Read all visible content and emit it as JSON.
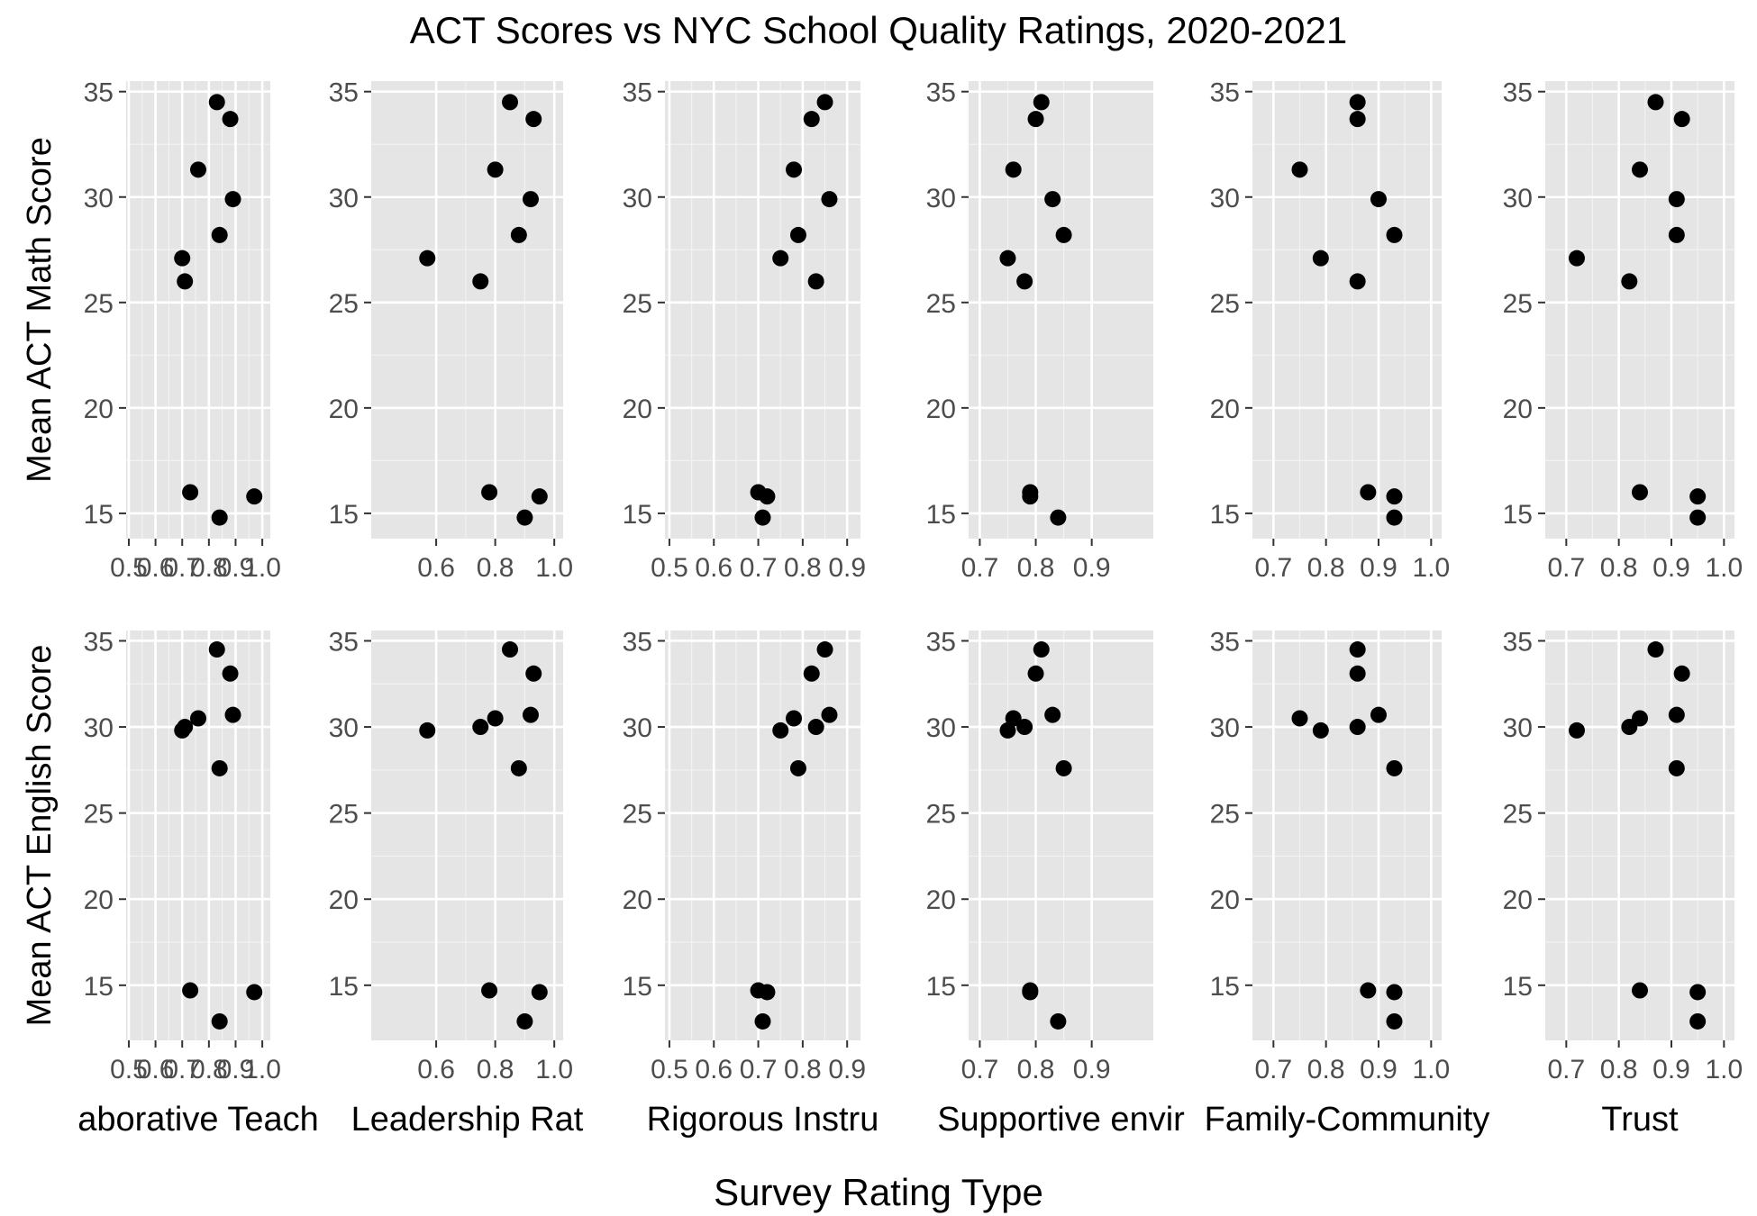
{
  "chart_data": {
    "type": "scatter",
    "title": "ACT Scores vs NYC School Quality Ratings, 2020-2021",
    "xlabel": "Survey Rating Type",
    "point_color": "#000000",
    "panel_background": "#e5e5e5",
    "grid": true,
    "rows": [
      {
        "ylabel": "Mean ACT Math Score",
        "ylim": [
          13.8,
          35.5
        ],
        "yticks": [
          15,
          20,
          25,
          30,
          35
        ]
      },
      {
        "ylabel": "Mean ACT English Score",
        "ylim": [
          11.8,
          35.6
        ],
        "yticks": [
          15,
          20,
          25,
          30,
          35
        ]
      }
    ],
    "columns": [
      {
        "strip_label": "aborative Teach",
        "xlim": [
          0.49,
          1.03
        ],
        "xticks": [
          0.5,
          0.6,
          0.7,
          0.8,
          0.9,
          1.0
        ],
        "xtick_labels": [
          "0.5",
          "0.6",
          "0.7",
          "0.8",
          "0.9",
          "1.0"
        ]
      },
      {
        "strip_label": "Leadership Rat",
        "xlim": [
          0.38,
          1.03
        ],
        "xticks": [
          0.6,
          0.8,
          1.0
        ],
        "xtick_labels": [
          "0.6",
          "0.8",
          "1.0"
        ]
      },
      {
        "strip_label": "Rigorous Instru",
        "xlim": [
          0.49,
          0.93
        ],
        "xticks": [
          0.5,
          0.6,
          0.7,
          0.8,
          0.9
        ],
        "xtick_labels": [
          "0.5",
          "0.6",
          "0.7",
          "0.8",
          "0.9"
        ]
      },
      {
        "strip_label": "Supportive envir",
        "xlim": [
          0.68,
          1.01
        ],
        "xticks": [
          0.7,
          0.8,
          0.9
        ],
        "xtick_labels": [
          "0.7",
          "0.8",
          "0.9"
        ]
      },
      {
        "strip_label": "Family-Community",
        "xlim": [
          0.66,
          1.02
        ],
        "xticks": [
          0.7,
          0.8,
          0.9,
          1.0
        ],
        "xtick_labels": [
          "0.7",
          "0.8",
          "0.9",
          "1.0"
        ]
      },
      {
        "strip_label": "Trust",
        "xlim": [
          0.66,
          1.02
        ],
        "xticks": [
          0.7,
          0.8,
          0.9,
          1.0
        ],
        "xtick_labels": [
          "0.7",
          "0.8",
          "0.9",
          "1.0"
        ]
      }
    ],
    "panels": [
      {
        "row": 0,
        "col": 0,
        "points": [
          [
            0.83,
            34.5
          ],
          [
            0.88,
            33.7
          ],
          [
            0.76,
            31.3
          ],
          [
            0.89,
            29.9
          ],
          [
            0.84,
            28.2
          ],
          [
            0.7,
            27.1
          ],
          [
            0.71,
            26.0
          ],
          [
            0.73,
            16.0
          ],
          [
            0.97,
            15.8
          ],
          [
            0.84,
            14.8
          ]
        ]
      },
      {
        "row": 0,
        "col": 1,
        "points": [
          [
            0.85,
            34.5
          ],
          [
            0.93,
            33.7
          ],
          [
            0.8,
            31.3
          ],
          [
            0.92,
            29.9
          ],
          [
            0.88,
            28.2
          ],
          [
            0.57,
            27.1
          ],
          [
            0.75,
            26.0
          ],
          [
            0.78,
            16.0
          ],
          [
            0.95,
            15.8
          ],
          [
            0.9,
            14.8
          ]
        ]
      },
      {
        "row": 0,
        "col": 2,
        "points": [
          [
            0.85,
            34.5
          ],
          [
            0.82,
            33.7
          ],
          [
            0.78,
            31.3
          ],
          [
            0.86,
            29.9
          ],
          [
            0.79,
            28.2
          ],
          [
            0.75,
            27.1
          ],
          [
            0.83,
            26.0
          ],
          [
            0.7,
            16.0
          ],
          [
            0.72,
            15.8
          ],
          [
            0.71,
            14.8
          ]
        ]
      },
      {
        "row": 0,
        "col": 3,
        "points": [
          [
            0.81,
            34.5
          ],
          [
            0.8,
            33.7
          ],
          [
            0.76,
            31.3
          ],
          [
            0.83,
            29.9
          ],
          [
            0.85,
            28.2
          ],
          [
            0.75,
            27.1
          ],
          [
            0.78,
            26.0
          ],
          [
            0.79,
            16.0
          ],
          [
            0.79,
            15.8
          ],
          [
            0.84,
            14.8
          ]
        ]
      },
      {
        "row": 0,
        "col": 4,
        "points": [
          [
            0.86,
            34.5
          ],
          [
            0.86,
            33.7
          ],
          [
            0.75,
            31.3
          ],
          [
            0.9,
            29.9
          ],
          [
            0.93,
            28.2
          ],
          [
            0.79,
            27.1
          ],
          [
            0.86,
            26.0
          ],
          [
            0.88,
            16.0
          ],
          [
            0.93,
            15.8
          ],
          [
            0.93,
            14.8
          ]
        ]
      },
      {
        "row": 0,
        "col": 5,
        "points": [
          [
            0.87,
            34.5
          ],
          [
            0.92,
            33.7
          ],
          [
            0.84,
            31.3
          ],
          [
            0.91,
            29.9
          ],
          [
            0.91,
            28.2
          ],
          [
            0.72,
            27.1
          ],
          [
            0.82,
            26.0
          ],
          [
            0.84,
            16.0
          ],
          [
            0.95,
            15.8
          ],
          [
            0.95,
            14.8
          ]
        ]
      },
      {
        "row": 1,
        "col": 0,
        "points": [
          [
            0.83,
            34.5
          ],
          [
            0.88,
            33.1
          ],
          [
            0.76,
            30.5
          ],
          [
            0.89,
            30.7
          ],
          [
            0.84,
            27.6
          ],
          [
            0.7,
            29.8
          ],
          [
            0.71,
            30.0
          ],
          [
            0.73,
            14.7
          ],
          [
            0.97,
            14.6
          ],
          [
            0.84,
            12.9
          ]
        ]
      },
      {
        "row": 1,
        "col": 1,
        "points": [
          [
            0.85,
            34.5
          ],
          [
            0.93,
            33.1
          ],
          [
            0.8,
            30.5
          ],
          [
            0.92,
            30.7
          ],
          [
            0.88,
            27.6
          ],
          [
            0.57,
            29.8
          ],
          [
            0.75,
            30.0
          ],
          [
            0.78,
            14.7
          ],
          [
            0.95,
            14.6
          ],
          [
            0.9,
            12.9
          ]
        ]
      },
      {
        "row": 1,
        "col": 2,
        "points": [
          [
            0.85,
            34.5
          ],
          [
            0.82,
            33.1
          ],
          [
            0.78,
            30.5
          ],
          [
            0.86,
            30.7
          ],
          [
            0.79,
            27.6
          ],
          [
            0.75,
            29.8
          ],
          [
            0.83,
            30.0
          ],
          [
            0.7,
            14.7
          ],
          [
            0.72,
            14.6
          ],
          [
            0.71,
            12.9
          ]
        ]
      },
      {
        "row": 1,
        "col": 3,
        "points": [
          [
            0.81,
            34.5
          ],
          [
            0.8,
            33.1
          ],
          [
            0.76,
            30.5
          ],
          [
            0.83,
            30.7
          ],
          [
            0.85,
            27.6
          ],
          [
            0.75,
            29.8
          ],
          [
            0.78,
            30.0
          ],
          [
            0.79,
            14.7
          ],
          [
            0.79,
            14.6
          ],
          [
            0.84,
            12.9
          ]
        ]
      },
      {
        "row": 1,
        "col": 4,
        "points": [
          [
            0.86,
            34.5
          ],
          [
            0.86,
            33.1
          ],
          [
            0.75,
            30.5
          ],
          [
            0.9,
            30.7
          ],
          [
            0.93,
            27.6
          ],
          [
            0.79,
            29.8
          ],
          [
            0.86,
            30.0
          ],
          [
            0.88,
            14.7
          ],
          [
            0.93,
            14.6
          ],
          [
            0.93,
            12.9
          ]
        ]
      },
      {
        "row": 1,
        "col": 5,
        "points": [
          [
            0.87,
            34.5
          ],
          [
            0.92,
            33.1
          ],
          [
            0.84,
            30.5
          ],
          [
            0.91,
            30.7
          ],
          [
            0.91,
            27.6
          ],
          [
            0.72,
            29.8
          ],
          [
            0.82,
            30.0
          ],
          [
            0.84,
            14.7
          ],
          [
            0.95,
            14.6
          ],
          [
            0.95,
            12.9
          ]
        ]
      }
    ]
  }
}
